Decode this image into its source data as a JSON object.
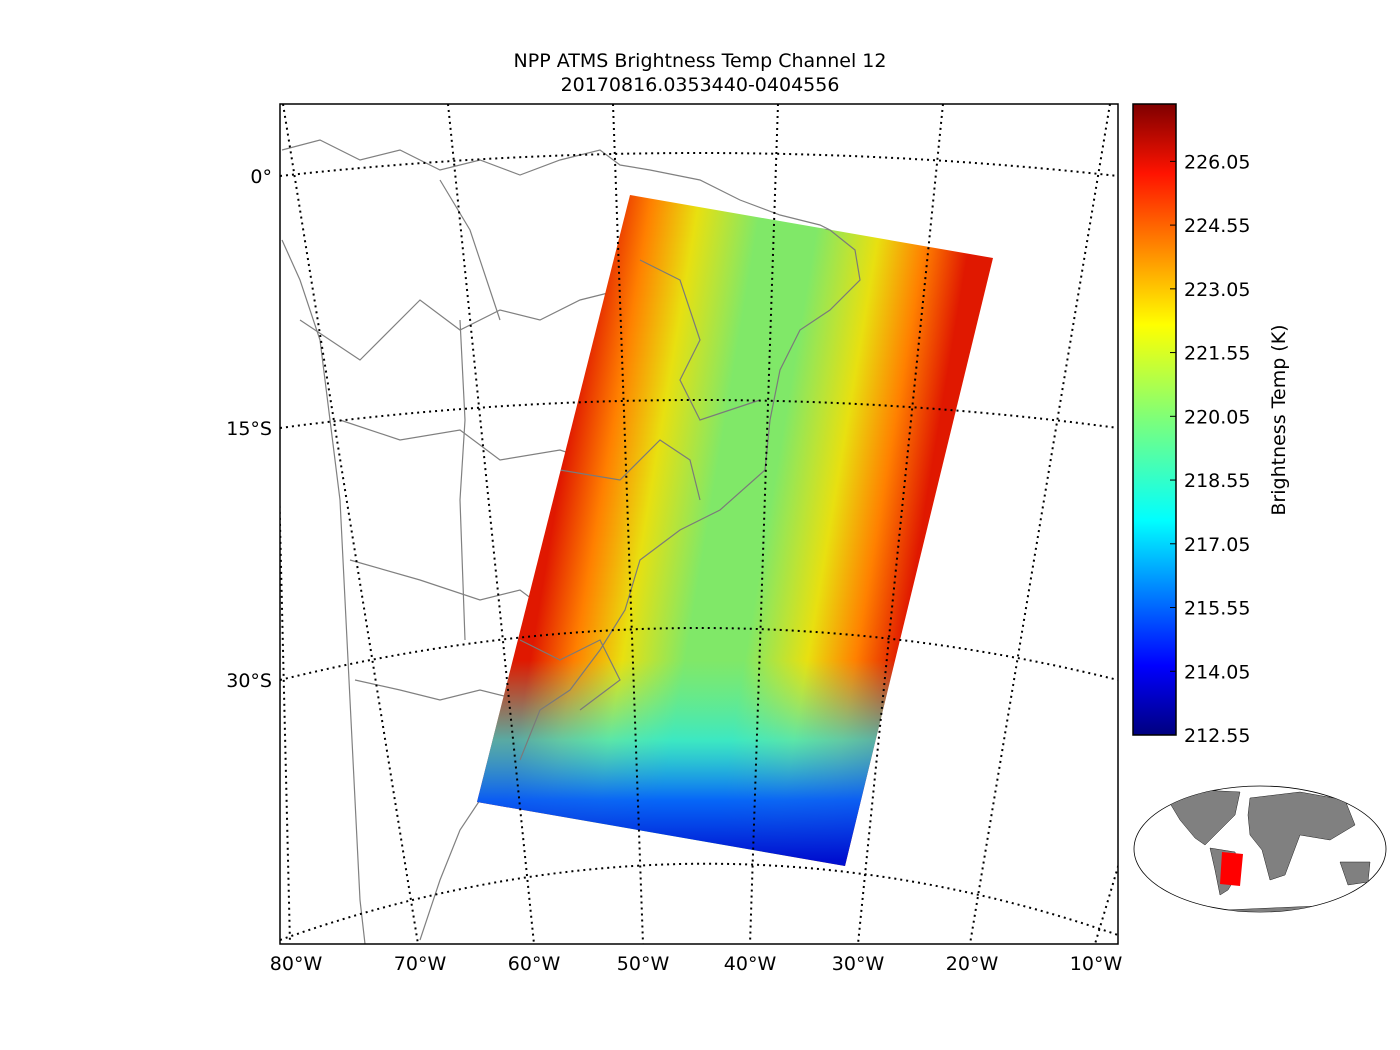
{
  "title": "NPP ATMS Brightness Temp Channel 12",
  "subtitle": "20170816.0353440-0404556",
  "chart_data": {
    "type": "heatmap",
    "title": "NPP ATMS Brightness Temp Channel 12",
    "subtitle": "20170816.0353440-0404556",
    "lat_labels": [
      "0°",
      "15°S",
      "30°S"
    ],
    "lon_labels": [
      "80°W",
      "70°W",
      "60°W",
      "50°W",
      "40°W",
      "30°W",
      "20°W",
      "10°W"
    ],
    "colorbar": {
      "label": "Brightness Temp (K)",
      "ticks": [
        "212.55",
        "214.05",
        "215.55",
        "217.05",
        "218.55",
        "220.05",
        "221.55",
        "223.05",
        "224.55",
        "226.05"
      ],
      "range": [
        212.55,
        227.4
      ],
      "colormap": "jet"
    },
    "grid": true
  },
  "colors": {
    "swath_edge": "#e83000",
    "swath_center": "#6ee86e",
    "swath_cold": "#0010e0",
    "coast": "#808080",
    "inset_swath": "#ff0000",
    "inset_land": "#808080"
  }
}
